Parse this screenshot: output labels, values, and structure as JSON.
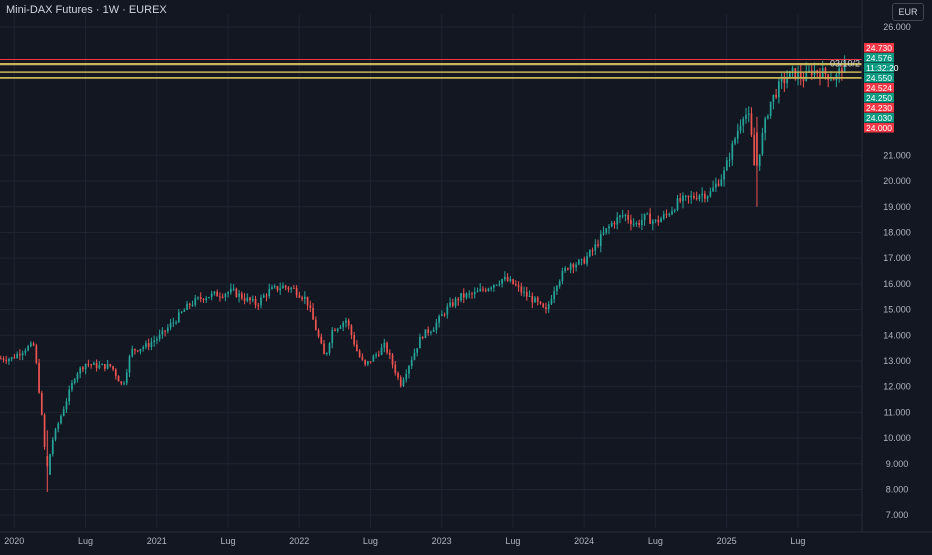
{
  "header": {
    "title": "Mini-DAX Futures · 1W · EUREX",
    "currency": "EUR"
  },
  "colors": {
    "background": "#131722",
    "grid": "#1f2331",
    "axis_text": "#b2b5be",
    "up": "#26a69a",
    "down": "#ef5350",
    "line_red": "#f23645",
    "line_yellow": "#c9b458",
    "line_green": "#4caf50"
  },
  "chart_data": {
    "type": "candlestick",
    "ylim": [
      6500,
      26500
    ],
    "y_ticks": [
      {
        "value": 7000,
        "label": "7.000"
      },
      {
        "value": 8000,
        "label": "8.000"
      },
      {
        "value": 9000,
        "label": "9.000"
      },
      {
        "value": 10000,
        "label": "10.000"
      },
      {
        "value": 11000,
        "label": "11.000"
      },
      {
        "value": 12000,
        "label": "12.000"
      },
      {
        "value": 13000,
        "label": "13.000"
      },
      {
        "value": 14000,
        "label": "14.000"
      },
      {
        "value": 15000,
        "label": "15.000"
      },
      {
        "value": 16000,
        "label": "16.000"
      },
      {
        "value": 17000,
        "label": "17.000"
      },
      {
        "value": 18000,
        "label": "18.000"
      },
      {
        "value": 19000,
        "label": "19.000"
      },
      {
        "value": 20000,
        "label": "20.000"
      },
      {
        "value": 21000,
        "label": "21.000"
      },
      {
        "value": 26000,
        "label": "26.000"
      }
    ],
    "x_ticks": [
      {
        "t": 0.0,
        "label": "2020"
      },
      {
        "t": 0.5,
        "label": "Lug"
      },
      {
        "t": 1.0,
        "label": "2021"
      },
      {
        "t": 1.5,
        "label": "Lug"
      },
      {
        "t": 2.0,
        "label": "2022"
      },
      {
        "t": 2.5,
        "label": "Lug"
      },
      {
        "t": 3.0,
        "label": "2023"
      },
      {
        "t": 3.5,
        "label": "Lug"
      },
      {
        "t": 4.0,
        "label": "2024"
      },
      {
        "t": 4.5,
        "label": "Lug"
      },
      {
        "t": 5.0,
        "label": "2025"
      },
      {
        "t": 5.5,
        "label": "Lug"
      }
    ],
    "x_range": [
      -0.1,
      5.95
    ],
    "anchors": [
      [
        0.0,
        13100
      ],
      [
        0.1,
        13500
      ],
      [
        0.16,
        13600
      ],
      [
        0.21,
        11000
      ],
      [
        0.25,
        8500
      ],
      [
        0.28,
        9800
      ],
      [
        0.33,
        10600
      ],
      [
        0.4,
        11700
      ],
      [
        0.45,
        12500
      ],
      [
        0.52,
        12900
      ],
      [
        0.6,
        12800
      ],
      [
        0.7,
        12800
      ],
      [
        0.78,
        12000
      ],
      [
        0.84,
        13400
      ],
      [
        0.95,
        13600
      ],
      [
        1.05,
        14000
      ],
      [
        1.15,
        14600
      ],
      [
        1.25,
        15200
      ],
      [
        1.35,
        15500
      ],
      [
        1.45,
        15600
      ],
      [
        1.55,
        15700
      ],
      [
        1.65,
        15400
      ],
      [
        1.72,
        15200
      ],
      [
        1.8,
        15700
      ],
      [
        1.9,
        15900
      ],
      [
        1.98,
        15800
      ],
      [
        2.07,
        15400
      ],
      [
        2.15,
        14000
      ],
      [
        2.2,
        13100
      ],
      [
        2.25,
        14200
      ],
      [
        2.35,
        14600
      ],
      [
        2.43,
        13300
      ],
      [
        2.48,
        12800
      ],
      [
        2.55,
        13200
      ],
      [
        2.62,
        13600
      ],
      [
        2.68,
        12800
      ],
      [
        2.73,
        12100
      ],
      [
        2.8,
        13000
      ],
      [
        2.88,
        14000
      ],
      [
        2.96,
        14300
      ],
      [
        3.05,
        15000
      ],
      [
        3.15,
        15500
      ],
      [
        3.25,
        15600
      ],
      [
        3.35,
        15900
      ],
      [
        3.45,
        16200
      ],
      [
        3.52,
        16000
      ],
      [
        3.6,
        15600
      ],
      [
        3.68,
        15300
      ],
      [
        3.75,
        14900
      ],
      [
        3.82,
        16000
      ],
      [
        3.92,
        16800
      ],
      [
        4.0,
        16800
      ],
      [
        4.08,
        17300
      ],
      [
        4.15,
        17900
      ],
      [
        4.22,
        18400
      ],
      [
        4.3,
        18700
      ],
      [
        4.38,
        18300
      ],
      [
        4.45,
        18600
      ],
      [
        4.52,
        18400
      ],
      [
        4.6,
        18700
      ],
      [
        4.68,
        19200
      ],
      [
        4.75,
        19300
      ],
      [
        4.83,
        19500
      ],
      [
        4.9,
        19500
      ],
      [
        5.0,
        20300
      ],
      [
        5.08,
        21700
      ],
      [
        5.14,
        22700
      ],
      [
        5.18,
        22400
      ],
      [
        5.22,
        20200
      ],
      [
        5.26,
        21500
      ],
      [
        5.32,
        23000
      ],
      [
        5.4,
        23800
      ],
      [
        5.48,
        24200
      ],
      [
        5.56,
        24000
      ],
      [
        5.62,
        24300
      ],
      [
        5.7,
        24200
      ],
      [
        5.78,
        24000
      ],
      [
        5.84,
        24500
      ]
    ],
    "events": [
      {
        "t": 0.24,
        "low": 7900,
        "high": 10300,
        "open": 9300,
        "close": 8900
      },
      {
        "t": 5.21,
        "low": 19000,
        "high": 22500,
        "open": 21900,
        "close": 20600
      }
    ],
    "horizontal_lines": [
      {
        "value": 24730,
        "label": "24.730",
        "kind": "red"
      },
      {
        "value": 24576,
        "label": "24.576",
        "kind": "green"
      },
      {
        "value": 24550,
        "label": "24.550",
        "kind": "green"
      },
      {
        "value": 24524,
        "label": "24.524",
        "kind": "red"
      },
      {
        "value": 24250,
        "label": "24.250",
        "kind": "green"
      },
      {
        "value": 24230,
        "label": "24.230",
        "kind": "red"
      },
      {
        "value": 24030,
        "label": "24.030",
        "kind": "green"
      },
      {
        "value": 24000,
        "label": "24.000",
        "kind": "red"
      }
    ],
    "price_labels": [
      {
        "label": "24.730",
        "kind": "red"
      },
      {
        "label": "24.576",
        "kind": "green"
      },
      {
        "label": "11:32:20",
        "kind": "green"
      },
      {
        "label": "24.550",
        "kind": "green"
      },
      {
        "label": "24.524",
        "kind": "red"
      },
      {
        "label": "24.250",
        "kind": "green"
      },
      {
        "label": "24.230",
        "kind": "red"
      },
      {
        "label": "24.030",
        "kind": "green"
      },
      {
        "label": "24.000",
        "kind": "red"
      }
    ],
    "date_marker": "03/10/2"
  }
}
